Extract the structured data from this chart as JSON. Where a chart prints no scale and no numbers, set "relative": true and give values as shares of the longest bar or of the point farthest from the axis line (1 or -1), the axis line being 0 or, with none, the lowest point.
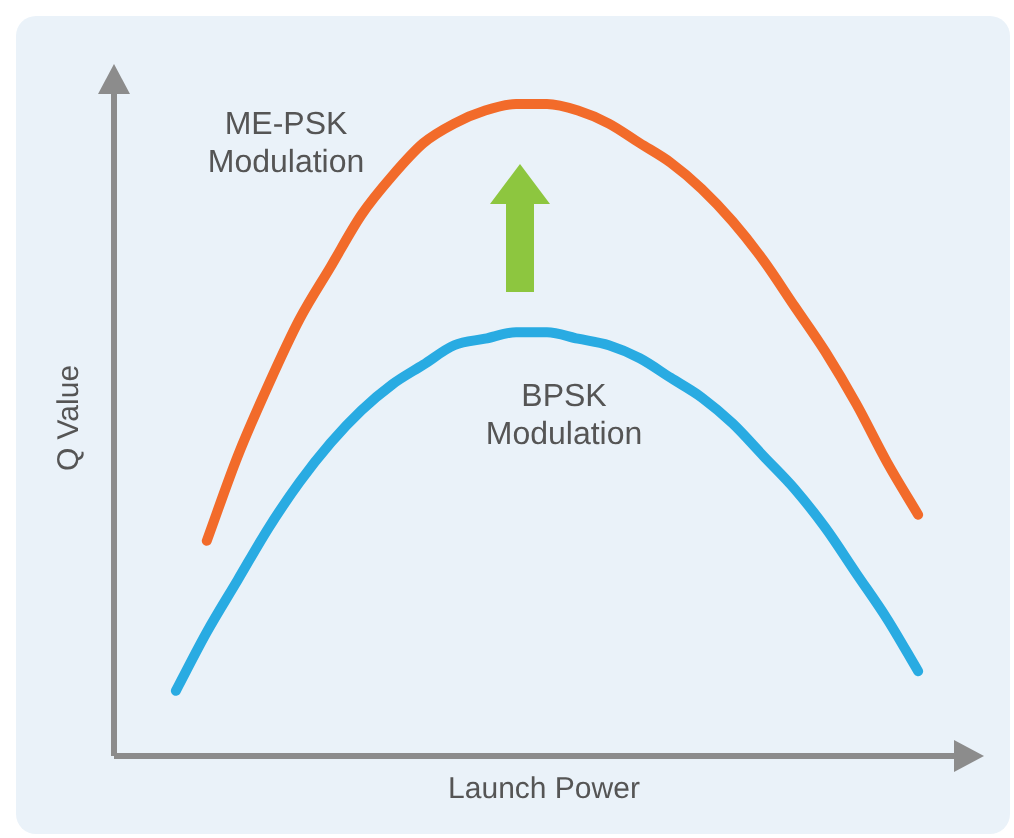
{
  "chart_data": {
    "type": "line",
    "relative": true,
    "xlabel": "Launch Power",
    "ylabel": "Q Value",
    "tick_labels": false,
    "marker": "none",
    "line_style": "solid",
    "categories": [
      null,
      null,
      null,
      null,
      null,
      null,
      null,
      null,
      null,
      null,
      null,
      null,
      null,
      null,
      null,
      null,
      null,
      null,
      null,
      null,
      null,
      null,
      null,
      null,
      null,
      null,
      null,
      null,
      null
    ],
    "series": [
      {
        "name": "ME-PSK Modulation",
        "color": "#f26b2a",
        "values": [
          null,
          null,
          null,
          0.33,
          0.46,
          0.57,
          0.67,
          0.75,
          0.83,
          0.89,
          0.94,
          0.97,
          0.99,
          1,
          1,
          0.99,
          0.97,
          0.94,
          0.91,
          0.87,
          0.82,
          0.76,
          0.69,
          0.62,
          0.54,
          0.45,
          0.37,
          null,
          null
        ]
      },
      {
        "name": "BPSK Modulation",
        "color": "#29abe2",
        "values": [
          null,
          null,
          0.1,
          0.19,
          0.27,
          0.35,
          0.42,
          0.48,
          0.53,
          0.57,
          0.6,
          0.63,
          0.64,
          0.65,
          0.65,
          0.64,
          0.63,
          0.61,
          0.58,
          0.55,
          0.51,
          0.46,
          0.41,
          0.35,
          0.28,
          0.21,
          0.13,
          null,
          null
        ]
      }
    ]
  }
}
